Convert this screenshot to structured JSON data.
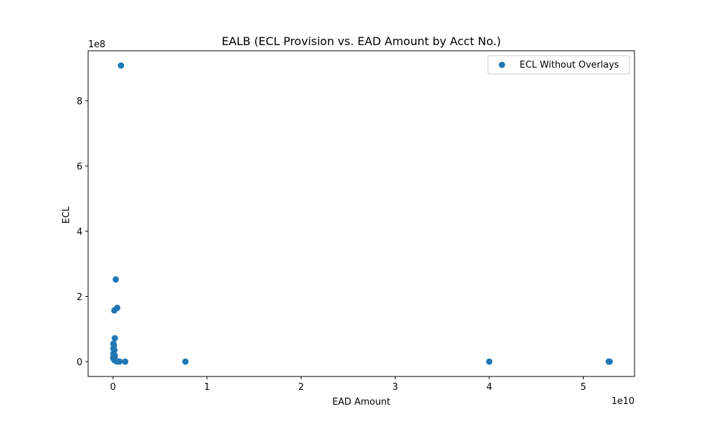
{
  "chart_data": {
    "type": "scatter",
    "title": "EALB (ECL Provision vs. EAD Amount by Acct No.)",
    "xlabel": "EAD Amount",
    "ylabel": "ECL",
    "x_offset_text": "1e10",
    "y_offset_text": "1e8",
    "xlim": [
      -2640000000.0,
      55440000000.0
    ],
    "ylim": [
      -45400000.0,
      953400000.0
    ],
    "x_ticks": [
      0,
      10000000000.0,
      20000000000.0,
      30000000000.0,
      40000000000.0,
      50000000000.0
    ],
    "x_tick_labels": [
      "0",
      "1",
      "2",
      "3",
      "4",
      "5"
    ],
    "y_ticks": [
      0,
      200000000.0,
      400000000.0,
      600000000.0,
      800000000.0
    ],
    "y_tick_labels": [
      "0",
      "2",
      "4",
      "6",
      "8"
    ],
    "grid": false,
    "legend_position": "top-right",
    "series": [
      {
        "name": "ECL Without Overlays",
        "color": "#1f77b4",
        "points": [
          [
            850000000.0,
            908000000.0
          ],
          [
            300000000.0,
            252000000.0
          ],
          [
            450000000.0,
            165000000.0
          ],
          [
            150000000.0,
            157000000.0
          ],
          [
            200000000.0,
            72000000.0
          ],
          [
            50000000.0,
            55000000.0
          ],
          [
            100000000.0,
            50000000.0
          ],
          [
            50000000.0,
            40000000.0
          ],
          [
            150000000.0,
            35000000.0
          ],
          [
            50000000.0,
            25000000.0
          ],
          [
            100000000.0,
            20000000.0
          ],
          [
            200000000.0,
            18000000.0
          ],
          [
            20000000.0,
            12000000.0
          ],
          [
            80000000.0,
            8000000.0
          ],
          [
            150000000.0,
            5000000.0
          ],
          [
            250000000.0,
            3000000.0
          ],
          [
            350000000.0,
            1000000.0
          ],
          [
            500000000.0,
            500000.0
          ],
          [
            700000000.0,
            300000.0
          ],
          [
            1300000000.0,
            200000.0
          ],
          [
            7700000000.0,
            100000.0
          ],
          [
            40000000000.0,
            100000.0
          ],
          [
            52700000000.0,
            200000.0
          ],
          [
            52800000000.0,
            100000.0
          ]
        ]
      }
    ]
  }
}
